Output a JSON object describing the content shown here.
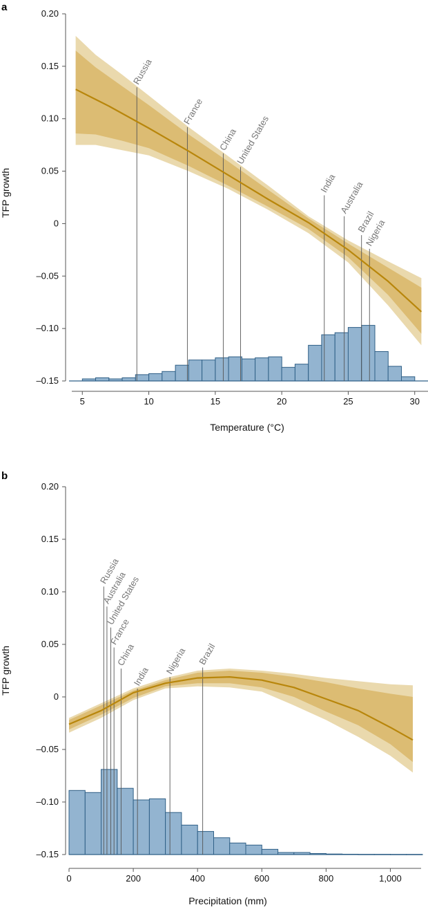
{
  "colors": {
    "curve": "#b8860b",
    "ci_outer": "#ead9ad",
    "ci_inner": "#dcbc73",
    "bar_fill": "#93b4d0",
    "bar_stroke": "#2f5f86",
    "callout": "#555555",
    "axis": "#555555"
  },
  "chart_data": [
    {
      "panel": "a",
      "type": "line",
      "xlabel": "Temperature (°C)",
      "ylabel": "TFP growth",
      "xlim": [
        4,
        31
      ],
      "ylim": [
        -0.15,
        0.2
      ],
      "xticks": [
        5,
        10,
        15,
        20,
        25,
        30
      ],
      "xtick_labels": [
        "5",
        "10",
        "15",
        "20",
        "25",
        "30"
      ],
      "yticks": [
        -0.15,
        -0.1,
        -0.05,
        0,
        0.05,
        0.1,
        0.15,
        0.2
      ],
      "ytick_labels": [
        "–0.15",
        "–0.10",
        "–0.05",
        "0",
        "0.05",
        "0.10",
        "0.15",
        "0.20"
      ],
      "curve": {
        "x": [
          4.5,
          7,
          10,
          13,
          16,
          19,
          22,
          25,
          28,
          30.5
        ],
        "y": [
          0.128,
          0.112,
          0.091,
          0.069,
          0.046,
          0.023,
          0.001,
          -0.025,
          -0.055,
          -0.084
        ]
      },
      "ci_outer": {
        "x": [
          4.5,
          6,
          8,
          10,
          13,
          16,
          19,
          22,
          25,
          28,
          30.5
        ],
        "upper": [
          0.179,
          0.161,
          0.142,
          0.122,
          0.092,
          0.064,
          0.036,
          0.007,
          -0.016,
          -0.036,
          -0.052
        ],
        "lower": [
          0.075,
          0.075,
          0.07,
          0.065,
          0.05,
          0.033,
          0.013,
          -0.009,
          -0.037,
          -0.078,
          -0.116
        ]
      },
      "ci_inner": {
        "x": [
          4.5,
          6,
          8,
          10,
          13,
          16,
          19,
          22,
          25,
          28,
          30.5
        ],
        "upper": [
          0.165,
          0.149,
          0.131,
          0.113,
          0.085,
          0.059,
          0.032,
          0.005,
          -0.019,
          -0.042,
          -0.061
        ],
        "lower": [
          0.086,
          0.085,
          0.079,
          0.072,
          0.055,
          0.036,
          0.016,
          -0.005,
          -0.032,
          -0.068,
          -0.105
        ]
      },
      "histogram": {
        "baseline": -0.15,
        "bins": [
          [
            5,
            6,
            -0.148
          ],
          [
            6,
            7,
            -0.147
          ],
          [
            7,
            8,
            -0.148
          ],
          [
            8,
            9,
            -0.147
          ],
          [
            9,
            10,
            -0.144
          ],
          [
            10,
            11,
            -0.143
          ],
          [
            11,
            12,
            -0.141
          ],
          [
            12,
            13,
            -0.135
          ],
          [
            13,
            14,
            -0.13
          ],
          [
            14,
            15,
            -0.13
          ],
          [
            15,
            16,
            -0.128
          ],
          [
            16,
            17,
            -0.127
          ],
          [
            17,
            18,
            -0.129
          ],
          [
            18,
            19,
            -0.128
          ],
          [
            19,
            20,
            -0.127
          ],
          [
            20,
            21,
            -0.137
          ],
          [
            21,
            22,
            -0.134
          ],
          [
            22,
            23,
            -0.116
          ],
          [
            23,
            24,
            -0.106
          ],
          [
            24,
            25,
            -0.104
          ],
          [
            25,
            26,
            -0.099
          ],
          [
            26,
            27,
            -0.097
          ],
          [
            27,
            28,
            -0.122
          ],
          [
            28,
            29,
            -0.136
          ],
          [
            29,
            30,
            -0.146
          ]
        ]
      },
      "callouts": [
        {
          "label": "Russia",
          "x": 9.1,
          "y_top": 0.13
        },
        {
          "label": "France",
          "x": 12.9,
          "y_top": 0.092
        },
        {
          "label": "China",
          "x": 15.6,
          "y_top": 0.067
        },
        {
          "label": "United States",
          "x": 16.9,
          "y_top": 0.054
        },
        {
          "label": "India",
          "x": 23.2,
          "y_top": 0.027
        },
        {
          "label": "Australia",
          "x": 24.7,
          "y_top": 0.007
        },
        {
          "label": "Brazil",
          "x": 26.0,
          "y_top": -0.011
        },
        {
          "label": "Nigeria",
          "x": 26.6,
          "y_top": -0.024
        }
      ]
    },
    {
      "panel": "b",
      "type": "line",
      "xlabel": "Precipitation (mm)",
      "ylabel": "TFP growth",
      "xlim": [
        0,
        1100
      ],
      "ylim": [
        -0.15,
        0.2
      ],
      "xticks": [
        0,
        200,
        400,
        600,
        800,
        1000
      ],
      "xtick_labels": [
        "0",
        "200",
        "400",
        "600",
        "800",
        "1,000"
      ],
      "yticks": [
        -0.15,
        -0.1,
        -0.05,
        0,
        0.05,
        0.1,
        0.15,
        0.2
      ],
      "ytick_labels": [
        "–0.15",
        "–0.10",
        "–0.05",
        "0",
        "0.05",
        "0.10",
        "0.15",
        "0.20"
      ],
      "curve": {
        "x": [
          0,
          100,
          200,
          300,
          400,
          500,
          600,
          700,
          800,
          900,
          1000,
          1070
        ],
        "y": [
          -0.026,
          -0.013,
          0.004,
          0.013,
          0.018,
          0.019,
          0.016,
          0.009,
          -0.002,
          -0.013,
          -0.029,
          -0.041
        ]
      },
      "ci_outer": {
        "x": [
          0,
          100,
          200,
          300,
          400,
          500,
          600,
          700,
          800,
          900,
          1000,
          1070
        ],
        "upper": [
          -0.02,
          -0.006,
          0.008,
          0.018,
          0.025,
          0.027,
          0.025,
          0.022,
          0.018,
          0.015,
          0.012,
          0.011
        ],
        "lower": [
          -0.034,
          -0.02,
          -0.003,
          0.008,
          0.01,
          0.009,
          0.005,
          -0.008,
          -0.022,
          -0.038,
          -0.056,
          -0.072
        ]
      },
      "ci_inner": {
        "x": [
          0,
          100,
          200,
          300,
          400,
          500,
          600,
          700,
          800,
          900,
          1000,
          1070
        ],
        "upper": [
          -0.022,
          -0.008,
          0.006,
          0.016,
          0.023,
          0.025,
          0.023,
          0.019,
          0.014,
          0.008,
          0.003,
          0.0
        ],
        "lower": [
          -0.031,
          -0.017,
          -0.001,
          0.01,
          0.013,
          0.013,
          0.009,
          0.0,
          -0.014,
          -0.027,
          -0.045,
          -0.062
        ]
      },
      "histogram": {
        "baseline": -0.15,
        "bins": [
          [
            0,
            50,
            -0.089
          ],
          [
            50,
            100,
            -0.091
          ],
          [
            100,
            150,
            -0.069
          ],
          [
            150,
            200,
            -0.087
          ],
          [
            200,
            250,
            -0.098
          ],
          [
            250,
            300,
            -0.097
          ],
          [
            300,
            350,
            -0.11
          ],
          [
            350,
            400,
            -0.122
          ],
          [
            400,
            450,
            -0.128
          ],
          [
            450,
            500,
            -0.134
          ],
          [
            500,
            550,
            -0.139
          ],
          [
            550,
            600,
            -0.141
          ],
          [
            600,
            650,
            -0.145
          ],
          [
            650,
            700,
            -0.148
          ],
          [
            700,
            750,
            -0.148
          ],
          [
            750,
            800,
            -0.149
          ],
          [
            800,
            850,
            -0.1495
          ],
          [
            850,
            900,
            -0.1497
          ],
          [
            900,
            950,
            -0.1498
          ],
          [
            950,
            1000,
            -0.1498
          ],
          [
            1000,
            1050,
            -0.1499
          ],
          [
            1050,
            1100,
            -0.1499
          ]
        ]
      },
      "callouts": [
        {
          "label": "Russia",
          "x": 108,
          "y_top": 0.105
        },
        {
          "label": "Australia",
          "x": 118,
          "y_top": 0.086
        },
        {
          "label": "United States",
          "x": 130,
          "y_top": 0.066
        },
        {
          "label": "France",
          "x": 140,
          "y_top": 0.047
        },
        {
          "label": "China",
          "x": 162,
          "y_top": 0.027
        },
        {
          "label": "India",
          "x": 213,
          "y_top": 0.008
        },
        {
          "label": "Nigeria",
          "x": 314,
          "y_top": 0.019
        },
        {
          "label": "Brazil",
          "x": 416,
          "y_top": 0.028
        }
      ]
    }
  ]
}
